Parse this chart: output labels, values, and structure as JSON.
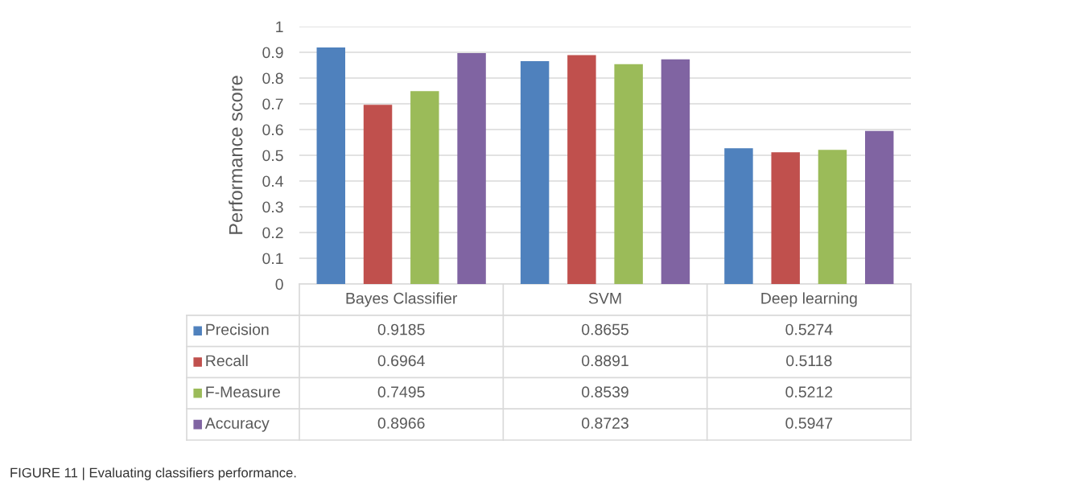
{
  "chart_data": {
    "type": "bar",
    "categories": [
      "Bayes Classifier",
      "SVM",
      "Deep learning"
    ],
    "series": [
      {
        "name": "Precision",
        "color": "#4f81bd",
        "values": [
          0.9185,
          0.8655,
          0.5274
        ]
      },
      {
        "name": "Recall",
        "color": "#c0504d",
        "values": [
          0.6964,
          0.8891,
          0.5118
        ]
      },
      {
        "name": "F-Measure",
        "color": "#9bbb59",
        "values": [
          0.7495,
          0.8539,
          0.5212
        ]
      },
      {
        "name": "Accuracy",
        "color": "#8064a2",
        "values": [
          0.8966,
          0.8723,
          0.5947
        ]
      }
    ],
    "ylabel": "Performance score",
    "ylim": [
      0,
      1
    ],
    "yticks": [
      0,
      0.1,
      0.2,
      0.3,
      0.4,
      0.5,
      0.6,
      0.7,
      0.8,
      0.9,
      1
    ],
    "grid": "y",
    "legend": "bottom",
    "data_labels": true,
    "annotations": [
      "FIGURE 11 | Evaluating classifiers performance."
    ]
  }
}
